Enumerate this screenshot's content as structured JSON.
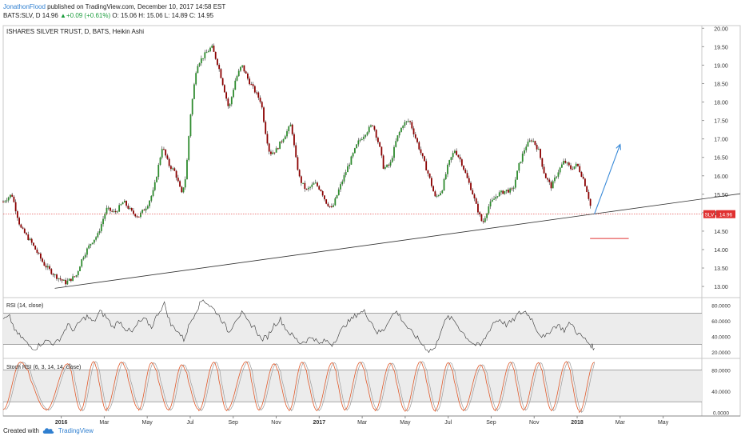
{
  "header": {
    "author": "JonathonFlood",
    "published": " published on TradingView.com, December 10, 2017 14:58 EST",
    "symbol": "BATS:SLV, D",
    "last": "14.96",
    "change": "+0.09 (+0.61%)",
    "ohlc": "O: 15.06  H: 15.06  L: 14.89  C: 14.95"
  },
  "main_title": "ISHARES SILVER TRUST, D, BATS, Heikin Ashi",
  "price_tag": {
    "symbol": "SLV",
    "value": "14.96"
  },
  "rsi_title": "RSI (14, close)",
  "stoch_title": "Stoch RSI (6, 3, 14, 14, close)",
  "footer": {
    "created": "Created with",
    "brand": "TradingView"
  },
  "colors": {
    "up": "#2e8b2e",
    "down": "#8b0000",
    "rsi": "#333333",
    "stoch_k": "#e05a2b",
    "stoch_d": "#9c9c9c",
    "trend": "#333333",
    "arrow": "#3a8ad8",
    "support": "#e03030",
    "band_fill": "#ececec"
  },
  "chart_data": [
    {
      "type": "candlestick",
      "title": "ISHARES SILVER TRUST, D, BATS, Heikin Ashi",
      "x_ticks": [
        "2016",
        "Mar",
        "May",
        "Jul",
        "Sep",
        "Nov",
        "2017",
        "Mar",
        "May",
        "Jul",
        "Sep",
        "Nov",
        "2018",
        "Mar",
        "May"
      ],
      "x_tick_months": [
        12,
        14,
        16,
        18,
        20,
        22,
        24,
        26,
        28,
        30,
        32,
        34,
        36,
        38,
        40
      ],
      "x_range_months": [
        9.3,
        41.8
      ],
      "y_ticks": [
        "20.00",
        "19.50",
        "19.00",
        "18.50",
        "18.00",
        "17.50",
        "17.00",
        "16.50",
        "16.00",
        "15.50",
        "15.00",
        "14.50",
        "14.00",
        "13.50",
        "13.00"
      ],
      "ylim": [
        12.85,
        20.05
      ],
      "price_path": [
        [
          9.3,
          15.3
        ],
        [
          9.7,
          15.5
        ],
        [
          10.1,
          14.6
        ],
        [
          10.6,
          14.2
        ],
        [
          11.2,
          13.6
        ],
        [
          11.7,
          13.3
        ],
        [
          12.2,
          13.1
        ],
        [
          12.7,
          13.3
        ],
        [
          13.0,
          13.8
        ],
        [
          13.4,
          14.2
        ],
        [
          13.7,
          14.4
        ],
        [
          14.1,
          15.1
        ],
        [
          14.5,
          15.0
        ],
        [
          14.9,
          15.3
        ],
        [
          15.3,
          15.0
        ],
        [
          15.6,
          14.9
        ],
        [
          16.0,
          15.2
        ],
        [
          16.3,
          15.6
        ],
        [
          16.7,
          16.8
        ],
        [
          17.0,
          16.3
        ],
        [
          17.3,
          16.1
        ],
        [
          17.6,
          15.5
        ],
        [
          17.8,
          16.0
        ],
        [
          18.0,
          17.6
        ],
        [
          18.3,
          19.0
        ],
        [
          18.7,
          19.3
        ],
        [
          19.0,
          19.5
        ],
        [
          19.3,
          19.0
        ],
        [
          19.6,
          18.3
        ],
        [
          19.8,
          17.8
        ],
        [
          20.1,
          18.6
        ],
        [
          20.4,
          19.0
        ],
        [
          20.7,
          18.6
        ],
        [
          21.0,
          18.3
        ],
        [
          21.3,
          18.0
        ],
        [
          21.5,
          17.2
        ],
        [
          21.7,
          16.6
        ],
        [
          22.0,
          16.7
        ],
        [
          22.4,
          17.1
        ],
        [
          22.7,
          17.4
        ],
        [
          22.9,
          16.5
        ],
        [
          23.1,
          15.9
        ],
        [
          23.4,
          15.6
        ],
        [
          23.8,
          15.8
        ],
        [
          24.1,
          15.6
        ],
        [
          24.3,
          15.3
        ],
        [
          24.6,
          15.1
        ],
        [
          24.9,
          15.6
        ],
        [
          25.3,
          16.2
        ],
        [
          25.8,
          16.9
        ],
        [
          26.2,
          17.2
        ],
        [
          26.5,
          17.4
        ],
        [
          26.8,
          16.8
        ],
        [
          27.0,
          16.2
        ],
        [
          27.3,
          16.3
        ],
        [
          27.6,
          17.0
        ],
        [
          27.9,
          17.4
        ],
        [
          28.2,
          17.5
        ],
        [
          28.5,
          17.0
        ],
        [
          28.8,
          16.5
        ],
        [
          29.1,
          16.0
        ],
        [
          29.4,
          15.4
        ],
        [
          29.7,
          15.6
        ],
        [
          30.0,
          16.3
        ],
        [
          30.3,
          16.7
        ],
        [
          30.6,
          16.4
        ],
        [
          30.9,
          15.9
        ],
        [
          31.1,
          15.6
        ],
        [
          31.3,
          15.2
        ],
        [
          31.6,
          14.7
        ],
        [
          31.9,
          15.2
        ],
        [
          32.3,
          15.5
        ],
        [
          32.7,
          15.6
        ],
        [
          33.0,
          15.6
        ],
        [
          33.3,
          16.3
        ],
        [
          33.6,
          16.8
        ],
        [
          33.9,
          17.0
        ],
        [
          34.2,
          16.7
        ],
        [
          34.5,
          16.0
        ],
        [
          34.8,
          15.7
        ],
        [
          35.1,
          16.1
        ],
        [
          35.4,
          16.4
        ],
        [
          35.7,
          16.2
        ],
        [
          36.0,
          16.3
        ],
        [
          36.3,
          15.9
        ],
        [
          36.5,
          15.5
        ],
        [
          36.7,
          14.96
        ]
      ],
      "trendline": [
        [
          11.7,
          12.95
        ],
        [
          41.8,
          15.37
        ]
      ],
      "horizontal_level": 14.96,
      "support_segment": {
        "x": [
          36.6,
          38.4
        ],
        "y": 14.3
      },
      "projection_arrow": [
        [
          36.8,
          14.96
        ],
        [
          38.0,
          16.85
        ]
      ],
      "last_price": 14.96
    },
    {
      "type": "line",
      "title": "RSI (14, close)",
      "y_ticks": [
        "80.0000",
        "60.0000",
        "40.0000",
        "20.0000"
      ],
      "ylim": [
        12,
        90
      ],
      "bands": [
        30,
        70
      ],
      "x": [
        9.3,
        9.6,
        9.9,
        10.2,
        10.5,
        10.8,
        11.1,
        11.4,
        11.7,
        12.0,
        12.3,
        12.6,
        12.9,
        13.2,
        13.5,
        13.8,
        14.1,
        14.4,
        14.7,
        15.0,
        15.3,
        15.6,
        15.9,
        16.2,
        16.5,
        16.8,
        17.1,
        17.4,
        17.7,
        18.0,
        18.3,
        18.6,
        18.9,
        19.2,
        19.5,
        19.8,
        20.1,
        20.4,
        20.7,
        21.0,
        21.3,
        21.6,
        21.9,
        22.2,
        22.5,
        22.8,
        23.1,
        23.4,
        23.7,
        24.0,
        24.3,
        24.6,
        24.9,
        25.2,
        25.5,
        25.8,
        26.1,
        26.4,
        26.7,
        27.0,
        27.3,
        27.6,
        27.9,
        28.2,
        28.5,
        28.8,
        29.1,
        29.4,
        29.7,
        30.0,
        30.3,
        30.6,
        30.9,
        31.2,
        31.5,
        31.8,
        32.1,
        32.4,
        32.7,
        33.0,
        33.3,
        33.6,
        33.9,
        34.2,
        34.5,
        34.8,
        35.1,
        35.4,
        35.7,
        36.0,
        36.3,
        36.6,
        36.8
      ],
      "values": [
        62,
        65,
        45,
        38,
        28,
        25,
        32,
        35,
        30,
        40,
        55,
        48,
        60,
        66,
        58,
        72,
        65,
        52,
        60,
        50,
        45,
        58,
        62,
        52,
        70,
        82,
        55,
        48,
        36,
        58,
        75,
        88,
        80,
        72,
        60,
        45,
        62,
        70,
        58,
        52,
        36,
        40,
        55,
        62,
        48,
        40,
        32,
        35,
        40,
        30,
        35,
        30,
        42,
        55,
        62,
        70,
        72,
        60,
        45,
        48,
        65,
        72,
        60,
        48,
        40,
        30,
        22,
        25,
        52,
        65,
        60,
        48,
        38,
        30,
        28,
        42,
        58,
        62,
        55,
        60,
        70,
        72,
        62,
        45,
        38,
        50,
        55,
        48,
        58,
        45,
        38,
        30,
        25
      ]
    },
    {
      "type": "line",
      "title": "Stoch RSI (6, 3, 14, 14, close)",
      "y_ticks": [
        "80.0000",
        "40.0000",
        "0.0000"
      ],
      "ylim": [
        -7,
        102
      ],
      "bands": [
        20,
        80
      ],
      "cycles": [
        [
          9.3,
          10.1,
          11.3,
          12.3,
          12.9,
          13.5,
          14.1,
          14.8,
          15.6,
          16.2,
          17.0,
          17.6,
          18.4,
          19.1,
          19.7,
          20.6,
          21.2,
          21.9,
          22.6,
          23.2,
          23.9,
          24.6,
          25.2,
          25.9,
          26.6,
          27.3,
          28.0,
          28.7,
          29.4,
          30.0,
          30.7,
          31.5,
          32.2,
          32.9,
          33.5,
          34.2,
          34.8,
          35.5,
          36.1,
          36.8
        ]
      ],
      "k_peaks": [
        95,
        92,
        96,
        95,
        94,
        90,
        95,
        96,
        92,
        95,
        94,
        95,
        93,
        96,
        94,
        90,
        95,
        94,
        96,
        95
      ],
      "k_lows": [
        5,
        4,
        3,
        6,
        4,
        5,
        3,
        4,
        5,
        3,
        4,
        5,
        3,
        2,
        4,
        3,
        5,
        4,
        3,
        0
      ]
    }
  ]
}
